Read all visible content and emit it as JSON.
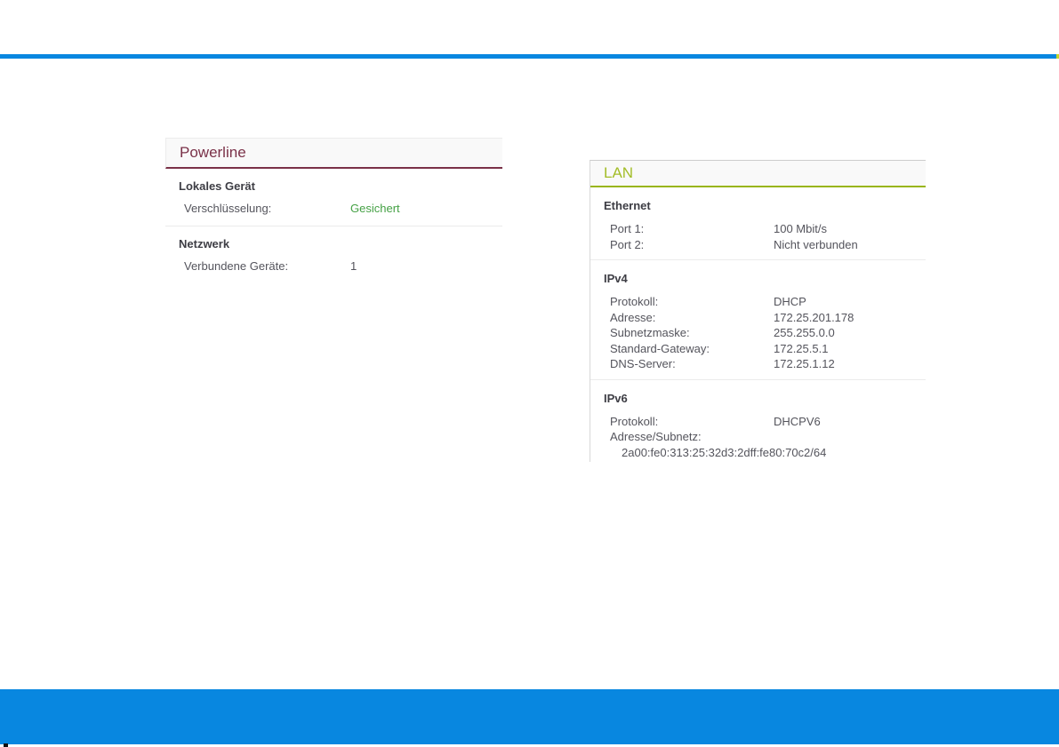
{
  "window": {
    "background": "#ffffff"
  },
  "top_divider": {
    "color": "#0887e0",
    "accent_tip_color": "#c3d62b"
  },
  "bottom_bar": {
    "color": "#0887e0"
  },
  "cards": {
    "powerline": {
      "title": "Powerline",
      "accent_color": "#7a3148",
      "sections": [
        {
          "heading": "Lokales Gerät",
          "rows": [
            {
              "label": "Verschlüsselung:",
              "value": "Gesichert",
              "value_color": "#45a145"
            }
          ]
        },
        {
          "heading": "Netzwerk",
          "rows": [
            {
              "label": "Verbundene Geräte:",
              "value": "1"
            }
          ]
        }
      ]
    },
    "lan": {
      "title": "LAN",
      "accent_color": "#99b516",
      "sections": [
        {
          "heading": "Ethernet",
          "rows": [
            {
              "label": "Port 1:",
              "value": "100 Mbit/s"
            },
            {
              "label": "Port 2:",
              "value": "Nicht verbunden"
            }
          ]
        },
        {
          "heading": "IPv4",
          "rows": [
            {
              "label": "Protokoll:",
              "value": "DHCP"
            },
            {
              "label": "Adresse:",
              "value": "172.25.201.178"
            },
            {
              "label": "Subnetzmaske:",
              "value": "255.255.0.0"
            },
            {
              "label": "Standard-Gateway:",
              "value": "172.25.5.1"
            },
            {
              "label": "DNS-Server:",
              "value": "172.25.1.12"
            }
          ]
        },
        {
          "heading": "IPv6",
          "rows": [
            {
              "label": "Protokoll:",
              "value": "DHCPV6"
            },
            {
              "label": "Adresse/Subnetz:",
              "value": ""
            }
          ],
          "address_line": "2a00:fe0:313:25:32d3:2dff:fe80:70c2/64"
        }
      ]
    }
  }
}
